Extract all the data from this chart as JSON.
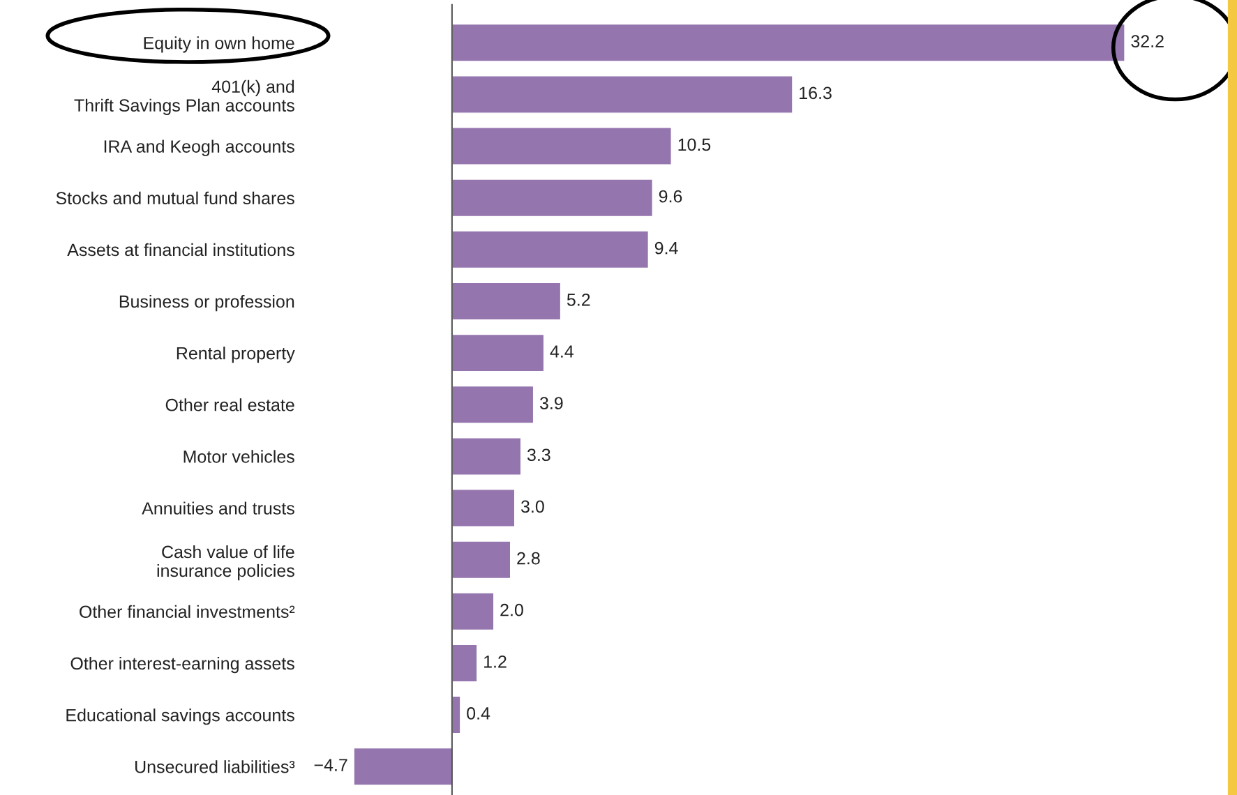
{
  "chart_data": {
    "type": "bar",
    "orientation": "horizontal",
    "categories": [
      "Equity in own home",
      "401(k) and\nThrift Savings Plan accounts",
      "IRA and Keogh accounts",
      "Stocks and mutual fund shares",
      "Assets at financial institutions",
      "Business or profession",
      "Rental property",
      "Other real estate",
      "Motor vehicles",
      "Annuities and trusts",
      "Cash value of life\ninsurance policies",
      "Other financial investments²",
      "Other interest-earning assets",
      "Educational savings accounts",
      "Unsecured liabilities³"
    ],
    "values": [
      32.2,
      16.3,
      10.5,
      9.6,
      9.4,
      5.2,
      4.4,
      3.9,
      3.3,
      3.0,
      2.8,
      2.0,
      1.2,
      0.4,
      -4.7
    ],
    "value_labels": [
      "32.2",
      "16.3",
      "10.5",
      "9.6",
      "9.4",
      "5.2",
      "4.4",
      "3.9",
      "3.3",
      "3.0",
      "2.8",
      "2.0",
      "1.2",
      "0.4",
      "−4.7"
    ],
    "color": "#9575ae",
    "tick_labels": "y",
    "grid": false,
    "legend": false
  }
}
